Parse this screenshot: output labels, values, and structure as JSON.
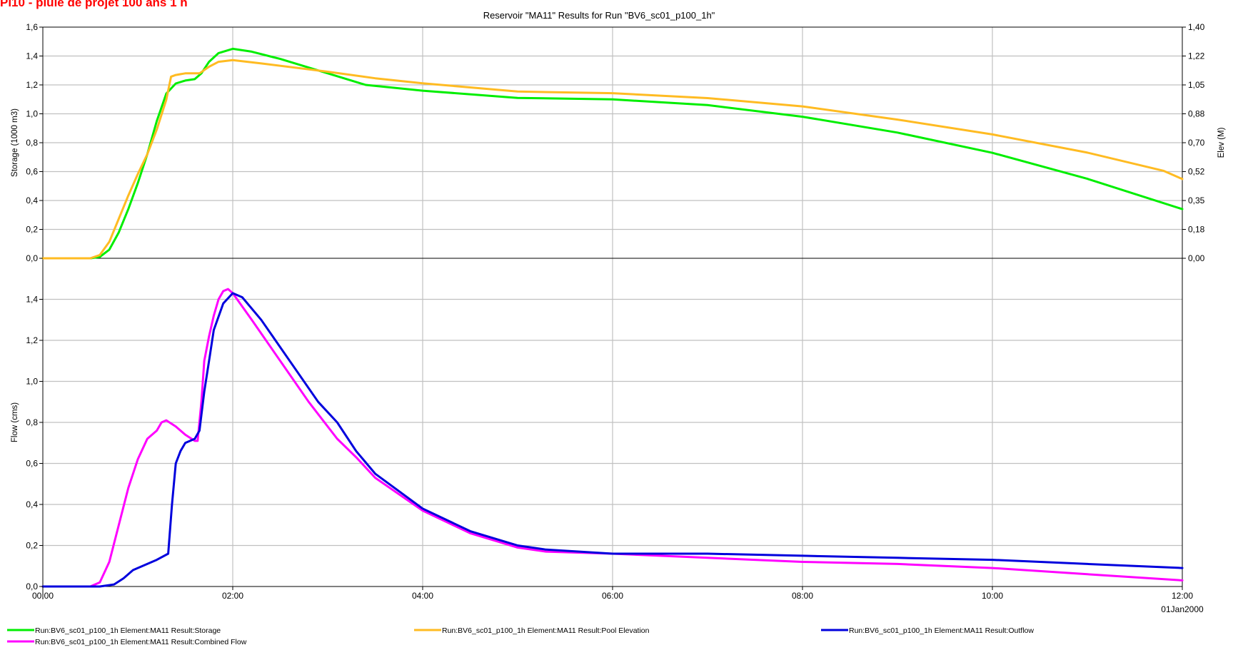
{
  "overlay_title": "Pi10 - pluie de projet 100 ans 1 h",
  "chart_data": [
    {
      "panel": "top",
      "type": "line",
      "title": "Reservoir \"MA11\" Results for Run \"BV6_sc01_p100_1h\"",
      "ylabel": "Storage (1000 m3)",
      "y2label": "Elev (M)",
      "ylim": [
        0,
        1.6
      ],
      "yticks": [
        "0,0",
        "0,2",
        "0,4",
        "0,6",
        "0,8",
        "1,0",
        "1,2",
        "1,4",
        "1,6"
      ],
      "y2lim": [
        0,
        1.4
      ],
      "y2ticks": [
        "0,00",
        "0,18",
        "0,35",
        "0,52",
        "0,70",
        "0,88",
        "1,05",
        "1,22",
        "1,40"
      ],
      "xlim": [
        0,
        12
      ],
      "grid": true,
      "series": [
        {
          "name": "Run:BV6_sc01_p100_1h Element:MA11 Result:Storage",
          "axis": "left",
          "color": "#00ee00",
          "points": [
            [
              0,
              0
            ],
            [
              0.5,
              0
            ],
            [
              0.6,
              0.01
            ],
            [
              0.7,
              0.06
            ],
            [
              0.8,
              0.18
            ],
            [
              0.9,
              0.34
            ],
            [
              1.0,
              0.52
            ],
            [
              1.1,
              0.72
            ],
            [
              1.2,
              0.95
            ],
            [
              1.3,
              1.14
            ],
            [
              1.4,
              1.21
            ],
            [
              1.5,
              1.23
            ],
            [
              1.6,
              1.24
            ],
            [
              1.67,
              1.28
            ],
            [
              1.75,
              1.36
            ],
            [
              1.85,
              1.42
            ],
            [
              2.0,
              1.45
            ],
            [
              2.2,
              1.43
            ],
            [
              2.5,
              1.38
            ],
            [
              2.8,
              1.32
            ],
            [
              3.1,
              1.26
            ],
            [
              3.4,
              1.2
            ],
            [
              4.0,
              1.16
            ],
            [
              5.0,
              1.11
            ],
            [
              6.0,
              1.1
            ],
            [
              7.0,
              1.06
            ],
            [
              8.0,
              0.98
            ],
            [
              9.0,
              0.87
            ],
            [
              10.0,
              0.73
            ],
            [
              11.0,
              0.55
            ],
            [
              12.0,
              0.34
            ]
          ]
        },
        {
          "name": "Run:BV6_sc01_p100_1h Element:MA11 Result:Pool Elevation",
          "axis": "right",
          "color": "#ffbb22",
          "points": [
            [
              0,
              0
            ],
            [
              0.5,
              0
            ],
            [
              0.6,
              0.02
            ],
            [
              0.7,
              0.1
            ],
            [
              0.8,
              0.24
            ],
            [
              0.9,
              0.38
            ],
            [
              1.0,
              0.51
            ],
            [
              1.1,
              0.63
            ],
            [
              1.2,
              0.78
            ],
            [
              1.3,
              0.96
            ],
            [
              1.35,
              1.1
            ],
            [
              1.4,
              1.11
            ],
            [
              1.5,
              1.12
            ],
            [
              1.65,
              1.12
            ],
            [
              1.75,
              1.16
            ],
            [
              1.85,
              1.19
            ],
            [
              2.0,
              1.2
            ],
            [
              2.3,
              1.18
            ],
            [
              3.0,
              1.13
            ],
            [
              3.5,
              1.09
            ],
            [
              4.0,
              1.06
            ],
            [
              5.0,
              1.01
            ],
            [
              6.0,
              1.0
            ],
            [
              7.0,
              0.97
            ],
            [
              8.0,
              0.92
            ],
            [
              9.0,
              0.84
            ],
            [
              10.0,
              0.75
            ],
            [
              11.0,
              0.64
            ],
            [
              11.8,
              0.53
            ],
            [
              12.0,
              0.48
            ]
          ]
        }
      ]
    },
    {
      "panel": "bottom",
      "type": "line",
      "ylabel": "Flow (cms)",
      "ylim": [
        0,
        1.6
      ],
      "yticks": [
        "0,0",
        "0,2",
        "0,4",
        "0,6",
        "0,8",
        "1,0",
        "1,2",
        "1,4"
      ],
      "xlim": [
        0,
        12
      ],
      "xticks": [
        "00:00",
        "02:00",
        "04:00",
        "06:00",
        "08:00",
        "10:00",
        "12:00"
      ],
      "xdate": "01Jan2000",
      "grid": true,
      "series": [
        {
          "name": "Run:BV6_sc01_p100_1h Element:MA11 Result:Combined Flow",
          "color": "#ff00ff",
          "points": [
            [
              0,
              0
            ],
            [
              0.5,
              0
            ],
            [
              0.6,
              0.02
            ],
            [
              0.7,
              0.12
            ],
            [
              0.8,
              0.3
            ],
            [
              0.9,
              0.48
            ],
            [
              1.0,
              0.62
            ],
            [
              1.1,
              0.72
            ],
            [
              1.2,
              0.76
            ],
            [
              1.25,
              0.8
            ],
            [
              1.3,
              0.81
            ],
            [
              1.4,
              0.78
            ],
            [
              1.5,
              0.74
            ],
            [
              1.6,
              0.71
            ],
            [
              1.63,
              0.71
            ],
            [
              1.67,
              0.9
            ],
            [
              1.7,
              1.1
            ],
            [
              1.75,
              1.22
            ],
            [
              1.8,
              1.32
            ],
            [
              1.85,
              1.4
            ],
            [
              1.9,
              1.44
            ],
            [
              1.95,
              1.45
            ],
            [
              2.0,
              1.43
            ],
            [
              2.2,
              1.3
            ],
            [
              2.5,
              1.1
            ],
            [
              2.8,
              0.9
            ],
            [
              3.1,
              0.72
            ],
            [
              3.3,
              0.63
            ],
            [
              3.5,
              0.53
            ],
            [
              4.0,
              0.37
            ],
            [
              4.5,
              0.26
            ],
            [
              5.0,
              0.19
            ],
            [
              5.3,
              0.17
            ],
            [
              6.0,
              0.16
            ],
            [
              7.0,
              0.14
            ],
            [
              8.0,
              0.12
            ],
            [
              9.0,
              0.11
            ],
            [
              10.0,
              0.09
            ],
            [
              11.0,
              0.06
            ],
            [
              12.0,
              0.03
            ]
          ]
        },
        {
          "name": "Run:BV6_sc01_p100_1h Element:MA11 Result:Outflow",
          "color": "#0000dd",
          "points": [
            [
              0,
              0
            ],
            [
              0.6,
              0
            ],
            [
              0.75,
              0.01
            ],
            [
              0.85,
              0.04
            ],
            [
              0.95,
              0.08
            ],
            [
              1.1,
              0.11
            ],
            [
              1.2,
              0.13
            ],
            [
              1.32,
              0.16
            ],
            [
              1.36,
              0.4
            ],
            [
              1.4,
              0.6
            ],
            [
              1.45,
              0.66
            ],
            [
              1.5,
              0.7
            ],
            [
              1.6,
              0.72
            ],
            [
              1.65,
              0.76
            ],
            [
              1.7,
              0.95
            ],
            [
              1.75,
              1.1
            ],
            [
              1.8,
              1.25
            ],
            [
              1.9,
              1.38
            ],
            [
              2.0,
              1.43
            ],
            [
              2.1,
              1.41
            ],
            [
              2.3,
              1.3
            ],
            [
              2.6,
              1.1
            ],
            [
              2.9,
              0.9
            ],
            [
              3.1,
              0.8
            ],
            [
              3.3,
              0.66
            ],
            [
              3.5,
              0.55
            ],
            [
              4.0,
              0.38
            ],
            [
              4.5,
              0.27
            ],
            [
              5.0,
              0.2
            ],
            [
              5.3,
              0.18
            ],
            [
              6.0,
              0.16
            ],
            [
              7.0,
              0.16
            ],
            [
              8.0,
              0.15
            ],
            [
              9.0,
              0.14
            ],
            [
              10.0,
              0.13
            ],
            [
              11.0,
              0.11
            ],
            [
              12.0,
              0.09
            ]
          ]
        }
      ]
    }
  ],
  "legend": [
    "Run:BV6_sc01_p100_1h Element:MA11 Result:Storage",
    "Run:BV6_sc01_p100_1h Element:MA11 Result:Pool Elevation",
    "Run:BV6_sc01_p100_1h Element:MA11 Result:Outflow",
    "Run:BV6_sc01_p100_1h Element:MA11 Result:Combined Flow"
  ],
  "legend_colors": [
    "#00ee00",
    "#ffbb22",
    "#0000dd",
    "#ff00ff"
  ]
}
